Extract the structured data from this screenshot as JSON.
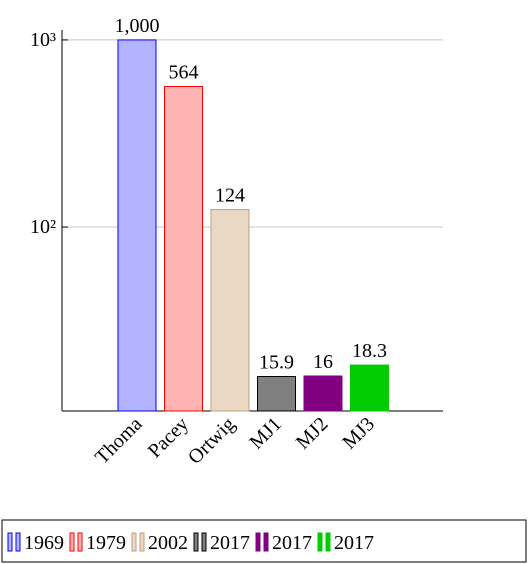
{
  "chart_data": {
    "type": "bar",
    "log_scale": true,
    "categories": [
      "Thoma",
      "Pacey",
      "Ortwig",
      "MJ1",
      "MJ2",
      "MJ3"
    ],
    "series": [
      {
        "name": "1969",
        "color": "#b3b3ff",
        "edgecolor": "#0000ff",
        "values": [
          1000,
          null,
          null,
          null,
          null,
          null
        ],
        "value_labels": [
          "1,000",
          null,
          null,
          null,
          null,
          null
        ]
      },
      {
        "name": "1979",
        "color": "#ffb3b3",
        "edgecolor": "#ff0000",
        "values": [
          null,
          564,
          null,
          null,
          null,
          null
        ]
      },
      {
        "name": "2002",
        "color": "#ead8c4",
        "edgecolor": "#bf9f80",
        "values": [
          null,
          null,
          124,
          null,
          null,
          null
        ]
      },
      {
        "name": "2017",
        "color": "#808080",
        "edgecolor": "#000000",
        "values": [
          null,
          null,
          null,
          15.9,
          null,
          null
        ]
      },
      {
        "name": "2017",
        "color": "#800080",
        "edgecolor": "#800080",
        "values": [
          null,
          null,
          null,
          null,
          16,
          null
        ]
      },
      {
        "name": "2017",
        "color": "#00cc00",
        "edgecolor": "#00cc00",
        "values": [
          null,
          null,
          null,
          null,
          null,
          18.3
        ]
      }
    ],
    "ylim": [
      10.4,
      1130
    ],
    "yticks": [
      {
        "value": 100,
        "label": "10²"
      },
      {
        "value": 1000,
        "label": "10³"
      }
    ],
    "grid": true,
    "legend": "bottom"
  }
}
